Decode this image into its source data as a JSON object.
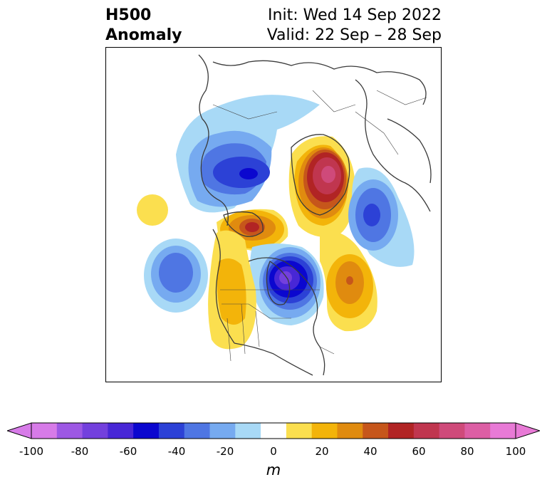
{
  "title": {
    "line1_left": "H500",
    "line2_left": "Anomaly",
    "line1_right": "Init: Wed 14 Sep 2022",
    "line2_right": "Valid: 22 Sep – 28 Sep"
  },
  "colorbar": {
    "unit": "m",
    "ticks": [
      "-100",
      "-80",
      "-60",
      "-40",
      "-20",
      "0",
      "20",
      "40",
      "60",
      "80",
      "100"
    ],
    "levels": [
      -100,
      -90,
      -80,
      -70,
      -60,
      -50,
      -40,
      -30,
      -20,
      -10,
      10,
      20,
      30,
      40,
      50,
      60,
      70,
      80,
      90,
      100
    ],
    "colors": [
      "#d77be8",
      "#9d58e4",
      "#7340dd",
      "#4827d6",
      "#0b07cf",
      "#2c41d6",
      "#4f76e3",
      "#76aaf0",
      "#a8d9f6",
      "#ffffff",
      "#fbdf4f",
      "#f3b40a",
      "#e08b0f",
      "#c6561b",
      "#b12424",
      "#c0364f",
      "#cf4a7a",
      "#dc5ea4",
      "#e87ad6"
    ],
    "extend_low_color": "#d77be8",
    "extend_high_color": "#e87ad6"
  },
  "anomalies": [
    {
      "name": "northwest-canada-low",
      "value": -70
    },
    {
      "name": "arctic-high",
      "value": 75
    },
    {
      "name": "scandinavia-low",
      "value": -50
    },
    {
      "name": "greenland-high",
      "value": 55
    },
    {
      "name": "pacific-low",
      "value": -40
    },
    {
      "name": "hudson-bay-low",
      "value": -85
    },
    {
      "name": "atlantic-high",
      "value": 35
    },
    {
      "name": "western-us-high",
      "value": 20
    },
    {
      "name": "east-asia-high",
      "value": 15
    }
  ]
}
